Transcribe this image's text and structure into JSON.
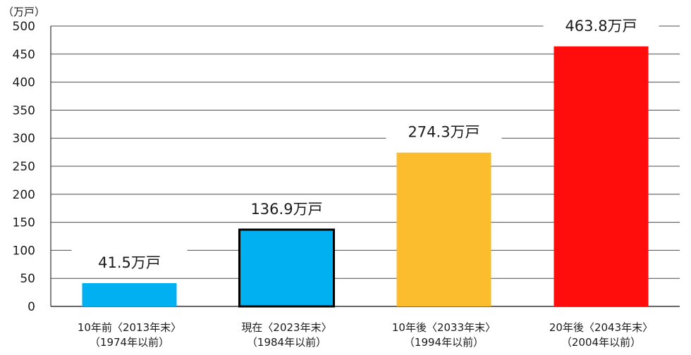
{
  "chart_data": {
    "type": "bar",
    "unit_label": "（万戸）",
    "ylim": [
      0,
      500
    ],
    "yticks": [
      0,
      50,
      100,
      150,
      200,
      250,
      300,
      350,
      400,
      450,
      500
    ],
    "grid": true,
    "categories": [
      {
        "line1": "10年前〈2013年末〉",
        "line2": "（1974年以前）"
      },
      {
        "line1": "現在〈2023年末〉",
        "line2": "（1984年以前）"
      },
      {
        "line1": "10年後〈2033年末〉",
        "line2": "（1994年以前）"
      },
      {
        "line1": "20年後〈2043年末〉",
        "line2": "（2004年以前）"
      }
    ],
    "values": [
      41.5,
      136.9,
      274.3,
      463.8
    ],
    "value_labels": [
      "41.5万戸",
      "136.9万戸",
      "274.3万戸",
      "463.8万戸"
    ],
    "bar_colors": [
      "#00b0f0",
      "#00b0f0",
      "#fbbd2e",
      "#ff0d0d"
    ],
    "highlighted_bar": 1
  }
}
